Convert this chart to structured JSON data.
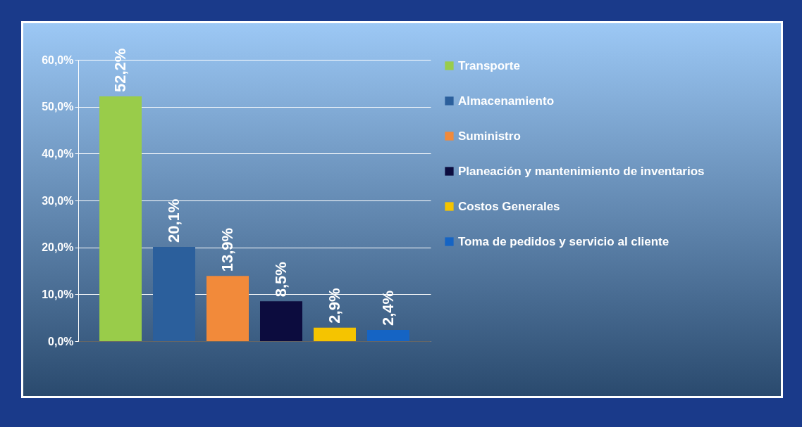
{
  "chart_data": {
    "type": "bar",
    "categories": [
      null,
      null,
      null,
      null,
      null,
      null
    ],
    "series": [
      {
        "name": "Transporte",
        "color": "#99cc4a",
        "values": [
          52.2,
          null,
          null,
          null,
          null,
          null
        ],
        "value_labels": [
          "52,2%",
          null,
          null,
          null,
          null,
          null
        ]
      },
      {
        "name": "Almacenamiento",
        "color": "#2b5f9c",
        "values": [
          null,
          20.1,
          null,
          null,
          null,
          null
        ],
        "value_labels": [
          null,
          "20,1%",
          null,
          null,
          null,
          null
        ]
      },
      {
        "name": "Suministro",
        "color": "#f28a3a",
        "values": [
          null,
          null,
          13.9,
          null,
          null,
          null
        ],
        "value_labels": [
          null,
          null,
          "13,9%",
          null,
          null,
          null
        ]
      },
      {
        "name": "Planeación y mantenimiento de inventarios",
        "color": "#0c0c3e",
        "values": [
          null,
          null,
          null,
          8.5,
          null,
          null
        ],
        "value_labels": [
          null,
          null,
          null,
          "8,5%",
          null,
          null
        ]
      },
      {
        "name": "Costos Generales",
        "color": "#f5c400",
        "values": [
          null,
          null,
          null,
          null,
          2.9,
          null
        ],
        "value_labels": [
          null,
          null,
          null,
          null,
          "2,9%",
          null
        ]
      },
      {
        "name": "Toma de pedidos y servicio al cliente",
        "color": "#1564c4",
        "values": [
          null,
          null,
          null,
          null,
          null,
          2.4
        ],
        "value_labels": [
          null,
          null,
          null,
          null,
          null,
          "2,4%"
        ]
      }
    ],
    "ylim": [
      0,
      60
    ],
    "yticks": [
      {
        "value": 0,
        "label": "0,0%"
      },
      {
        "value": 10,
        "label": "10,0%"
      },
      {
        "value": 20,
        "label": "20,0%"
      },
      {
        "value": 30,
        "label": "30,0%"
      },
      {
        "value": 40,
        "label": "40,0%"
      },
      {
        "value": 50,
        "label": "50,0%"
      },
      {
        "value": 60,
        "label": "60,0%"
      }
    ],
    "grid": "y",
    "legend": "right",
    "tick_labels": "y"
  }
}
